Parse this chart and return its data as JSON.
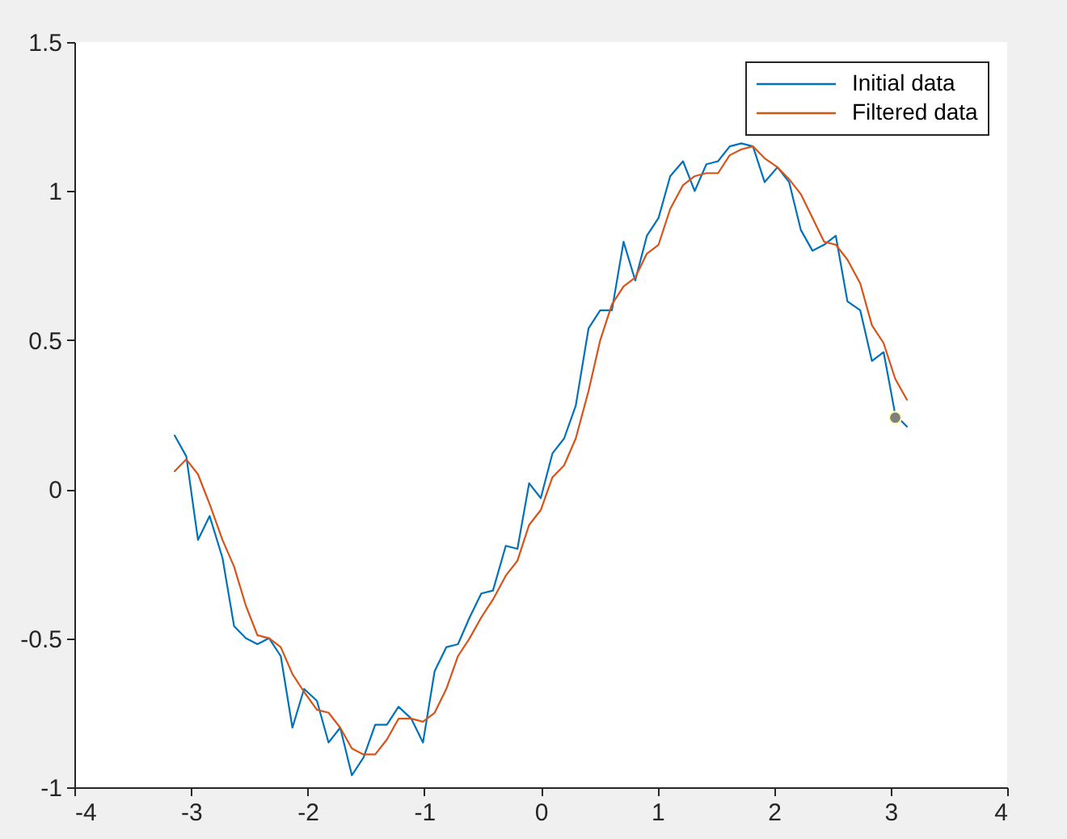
{
  "chart_data": {
    "type": "line",
    "x": [
      -3.14,
      -3.04,
      -2.94,
      -2.84,
      -2.73,
      -2.63,
      -2.53,
      -2.43,
      -2.33,
      -2.23,
      -2.13,
      -2.03,
      -1.92,
      -1.82,
      -1.72,
      -1.62,
      -1.52,
      -1.42,
      -1.32,
      -1.22,
      -1.11,
      -1.01,
      -0.91,
      -0.81,
      -0.71,
      -0.61,
      -0.51,
      -0.41,
      -0.3,
      -0.2,
      -0.1,
      0.0,
      0.1,
      0.2,
      0.3,
      0.41,
      0.51,
      0.61,
      0.71,
      0.81,
      0.91,
      1.01,
      1.11,
      1.22,
      1.32,
      1.42,
      1.52,
      1.62,
      1.72,
      1.82,
      1.92,
      2.03,
      2.13,
      2.23,
      2.33,
      2.43,
      2.53,
      2.63,
      2.74,
      2.84,
      2.94,
      3.04,
      3.14
    ],
    "xlim": [
      -4,
      4
    ],
    "xticks": [
      -4,
      -3,
      -2,
      -1,
      0,
      1,
      2,
      3,
      4
    ],
    "ylim": [
      -1,
      1.5
    ],
    "yticks": [
      -1,
      -0.5,
      0,
      0.5,
      1,
      1.5
    ],
    "grid": false,
    "legend": "top right",
    "series": [
      {
        "name": "Initial data",
        "color": "#0072bd",
        "values": [
          0.18,
          0.11,
          -0.17,
          -0.09,
          -0.23,
          -0.46,
          -0.5,
          -0.52,
          -0.5,
          -0.56,
          -0.8,
          -0.67,
          -0.71,
          -0.85,
          -0.8,
          -0.96,
          -0.9,
          -0.79,
          -0.79,
          -0.73,
          -0.77,
          -0.85,
          -0.61,
          -0.53,
          -0.52,
          -0.43,
          -0.35,
          -0.34,
          -0.19,
          -0.2,
          0.02,
          -0.03,
          0.12,
          0.17,
          0.28,
          0.54,
          0.6,
          0.6,
          0.83,
          0.7,
          0.85,
          0.91,
          1.05,
          1.1,
          1.0,
          1.09,
          1.1,
          1.15,
          1.16,
          1.15,
          1.03,
          1.08,
          1.03,
          0.87,
          0.8,
          0.82,
          0.85,
          0.63,
          0.6,
          0.43,
          0.46,
          0.25,
          0.21
        ]
      },
      {
        "name": "Filtered data",
        "color": "#d95319",
        "values": [
          0.06,
          0.1,
          0.05,
          -0.05,
          -0.17,
          -0.26,
          -0.39,
          -0.49,
          -0.5,
          -0.53,
          -0.62,
          -0.68,
          -0.74,
          -0.75,
          -0.8,
          -0.87,
          -0.89,
          -0.89,
          -0.84,
          -0.77,
          -0.77,
          -0.78,
          -0.75,
          -0.67,
          -0.56,
          -0.5,
          -0.43,
          -0.37,
          -0.29,
          -0.24,
          -0.12,
          -0.07,
          0.04,
          0.08,
          0.17,
          0.33,
          0.5,
          0.62,
          0.68,
          0.71,
          0.79,
          0.82,
          0.94,
          1.02,
          1.05,
          1.06,
          1.06,
          1.12,
          1.14,
          1.15,
          1.11,
          1.08,
          1.04,
          0.99,
          0.91,
          0.83,
          0.82,
          0.77,
          0.69,
          0.55,
          0.49,
          0.37,
          0.3
        ]
      },
      {
        "type": "scatter",
        "color": "#7f7f7f",
        "x": [
          3.04
        ],
        "values": [
          0.24
        ]
      }
    ]
  }
}
